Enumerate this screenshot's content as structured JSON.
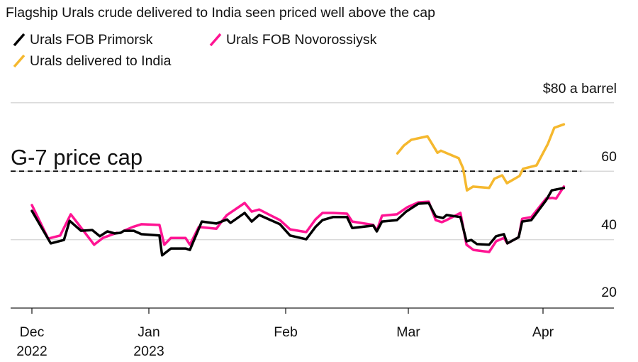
{
  "chart_data": {
    "type": "line",
    "title": "Flagship Urals crude delivered to India seen priced well above the cap",
    "ylabel": "$80 a barrel",
    "ylim": [
      20,
      80
    ],
    "yticks": [
      {
        "value": 80,
        "label": "$80 a barrel"
      },
      {
        "value": 60,
        "label": "60"
      },
      {
        "value": 40,
        "label": "40"
      },
      {
        "value": 20,
        "label": "20"
      }
    ],
    "x_unit": "days since 2022-12-01",
    "xticks": [
      {
        "day": 0,
        "label": "Dec",
        "sublabel": "2022"
      },
      {
        "day": 31,
        "label": "Jan",
        "sublabel": "2023"
      },
      {
        "day": 62,
        "label": "Feb",
        "sublabel": ""
      },
      {
        "day": 90,
        "label": "Mar",
        "sublabel": ""
      },
      {
        "day": 121,
        "label": "Apr",
        "sublabel": ""
      }
    ],
    "annotation": {
      "label": "G-7 price cap",
      "value": 60
    },
    "grid": true,
    "legend_placement": "top-left",
    "series": [
      {
        "name": "Urals FOB Primorsk",
        "color": "#000000",
        "points": [
          [
            0,
            48.4
          ],
          [
            5,
            38.9
          ],
          [
            8.5,
            39.9
          ],
          [
            10,
            45.5
          ],
          [
            13,
            42.6
          ],
          [
            16,
            42.8
          ],
          [
            18,
            41
          ],
          [
            20,
            42.4
          ],
          [
            22,
            41.8
          ],
          [
            23.5,
            42
          ],
          [
            24.4,
            42.6
          ],
          [
            27,
            42.6
          ],
          [
            29,
            41.6
          ],
          [
            33.4,
            41.2
          ],
          [
            34,
            35.4
          ],
          [
            36,
            37.4
          ],
          [
            39.3,
            37.4
          ],
          [
            40.3,
            37
          ],
          [
            43,
            45.3
          ],
          [
            46.3,
            44.7
          ],
          [
            48.7,
            45.9
          ],
          [
            49.5,
            44.9
          ],
          [
            52.7,
            47.8
          ],
          [
            54.3,
            45.3
          ],
          [
            56,
            47.2
          ],
          [
            60.7,
            44.5
          ],
          [
            63,
            41.2
          ],
          [
            66.7,
            40.1
          ],
          [
            68.8,
            43.7
          ],
          [
            70.4,
            45.7
          ],
          [
            72.8,
            46.6
          ],
          [
            76,
            46.6
          ],
          [
            77.2,
            43.4
          ],
          [
            82,
            44.1
          ],
          [
            82.8,
            42.4
          ],
          [
            84,
            45.3
          ],
          [
            87.4,
            45.7
          ],
          [
            89.5,
            48.2
          ],
          [
            92.3,
            50.5
          ],
          [
            94.7,
            50.7
          ],
          [
            96.3,
            46.8
          ],
          [
            98,
            46.3
          ],
          [
            98.8,
            47.2
          ],
          [
            102,
            46.6
          ],
          [
            103.4,
            39.5
          ],
          [
            104.5,
            39.9
          ],
          [
            105.8,
            38.7
          ],
          [
            108.6,
            38.5
          ],
          [
            110.2,
            41
          ],
          [
            112,
            41.6
          ],
          [
            112.8,
            38.9
          ],
          [
            115.4,
            40.7
          ],
          [
            116.2,
            45.3
          ],
          [
            118.3,
            45.7
          ],
          [
            121.7,
            51.5
          ],
          [
            123,
            54.4
          ],
          [
            125.8,
            55.1
          ]
        ]
      },
      {
        "name": "Urals FOB Novorossiysk",
        "color": "#ff1493",
        "points": [
          [
            0,
            50.1
          ],
          [
            4.3,
            40.3
          ],
          [
            7.5,
            41.2
          ],
          [
            10.3,
            47.4
          ],
          [
            12.2,
            44.7
          ],
          [
            16.5,
            38.5
          ],
          [
            18.8,
            40.5
          ],
          [
            22.5,
            42
          ],
          null,
          [
            24.4,
            42.6
          ],
          [
            26.7,
            43.7
          ],
          [
            29,
            44.5
          ],
          [
            33.4,
            44.3
          ],
          [
            34.5,
            38.5
          ],
          [
            36,
            40.5
          ],
          [
            39.3,
            40.5
          ],
          [
            40.3,
            38.5
          ],
          [
            42.3,
            43.7
          ],
          [
            46.3,
            43.2
          ],
          [
            47.5,
            45.3
          ],
          [
            48.7,
            47.2
          ],
          [
            52.7,
            50.7
          ],
          [
            54.3,
            48.2
          ],
          [
            56,
            48.8
          ],
          [
            60.7,
            45.7
          ],
          [
            63,
            43
          ],
          [
            66.7,
            42.2
          ],
          [
            68.8,
            45.9
          ],
          [
            70.4,
            47.8
          ],
          [
            72.8,
            47.8
          ],
          [
            76,
            47.6
          ],
          [
            77.2,
            45.3
          ],
          [
            82,
            44.3
          ],
          [
            82.8,
            42.6
          ],
          [
            84,
            47
          ],
          [
            87.4,
            47.4
          ],
          [
            89.8,
            49.5
          ],
          [
            92.3,
            50.9
          ],
          [
            94.7,
            51.1
          ],
          [
            96.3,
            45.7
          ],
          [
            97.7,
            45.1
          ],
          [
            98.8,
            45.7
          ],
          [
            102,
            47.8
          ],
          [
            103.4,
            38.5
          ],
          [
            105,
            37
          ],
          [
            108.6,
            36.4
          ],
          [
            110.2,
            39.5
          ],
          [
            112,
            40.5
          ],
          [
            112.8,
            38.9
          ],
          [
            115.4,
            40.7
          ],
          [
            116.2,
            46.1
          ],
          [
            118.3,
            46.6
          ],
          [
            121.7,
            52
          ],
          [
            123.2,
            52.2
          ],
          [
            124,
            52
          ],
          [
            125.8,
            55.5
          ]
        ]
      },
      {
        "name": "Urals delivered to India",
        "color": "#f5b82e",
        "points": [
          [
            87.5,
            65.2
          ],
          [
            89,
            67.5
          ],
          [
            90.7,
            69.2
          ],
          [
            94.4,
            70.2
          ],
          [
            96.7,
            65.4
          ],
          [
            97.5,
            66
          ],
          [
            101.6,
            63.8
          ],
          [
            102.6,
            60.9
          ],
          [
            103.5,
            54.4
          ],
          [
            104.9,
            55.5
          ],
          [
            108.6,
            55.1
          ],
          [
            109.8,
            57.8
          ],
          [
            111.6,
            58.8
          ],
          [
            112.7,
            56.5
          ],
          [
            115.6,
            58.6
          ],
          [
            116.4,
            60.7
          ],
          [
            119.5,
            61.7
          ],
          [
            122.1,
            67.9
          ],
          [
            123.6,
            72.7
          ],
          [
            125.8,
            73.7
          ]
        ]
      }
    ]
  }
}
